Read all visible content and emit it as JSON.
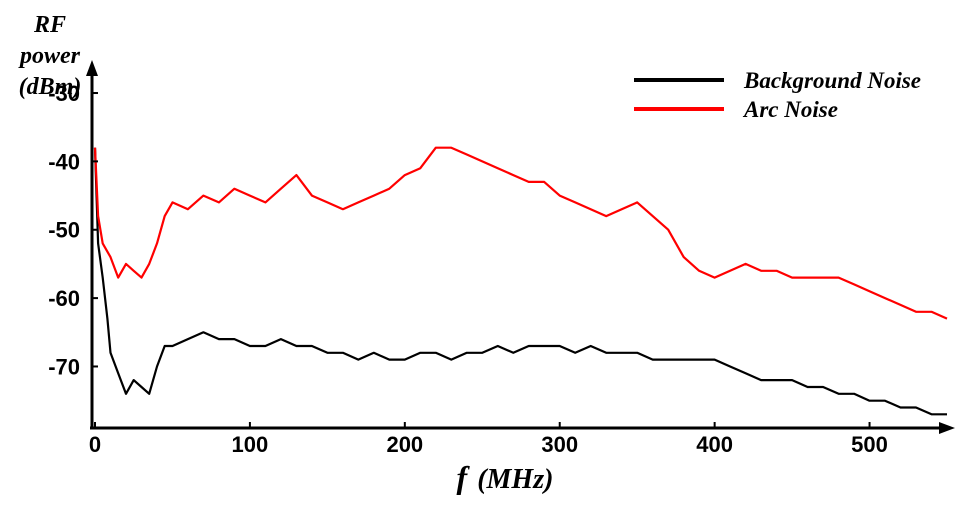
{
  "chart_data": {
    "type": "line",
    "title": "",
    "ylabel_lines": [
      "RF",
      "power",
      "(dBm)"
    ],
    "xlabel": {
      "italic_var": "f",
      "unit": "(MHz)"
    },
    "xlim": [
      0,
      550
    ],
    "ylim": [
      -79,
      -24
    ],
    "x_ticks": [
      0,
      100,
      200,
      300,
      400,
      500
    ],
    "x_tick_labels": [
      "0",
      "100",
      "200",
      "300",
      "400",
      "500"
    ],
    "y_ticks": [
      -30,
      -40,
      -50,
      -60,
      -70
    ],
    "y_tick_labels": [
      "-30",
      "-40",
      "-50",
      "-60",
      "-70"
    ],
    "grid": false,
    "legend_position": "top-right",
    "series": [
      {
        "name": "Background Noise",
        "color": "#000000",
        "x": [
          0,
          2,
          5,
          8,
          10,
          15,
          20,
          25,
          30,
          35,
          40,
          45,
          50,
          60,
          70,
          80,
          90,
          100,
          110,
          120,
          130,
          140,
          150,
          160,
          170,
          180,
          190,
          200,
          210,
          220,
          230,
          240,
          250,
          260,
          270,
          280,
          290,
          300,
          310,
          320,
          330,
          340,
          350,
          360,
          370,
          380,
          390,
          400,
          410,
          420,
          430,
          440,
          450,
          460,
          470,
          480,
          490,
          500,
          510,
          520,
          530,
          540,
          550
        ],
        "values": [
          -38,
          -52,
          -57,
          -63,
          -68,
          -71,
          -74,
          -72,
          -73,
          -74,
          -70,
          -67,
          -67,
          -66,
          -65,
          -66,
          -66,
          -67,
          -67,
          -66,
          -67,
          -67,
          -68,
          -68,
          -69,
          -68,
          -69,
          -69,
          -68,
          -68,
          -69,
          -68,
          -68,
          -67,
          -68,
          -67,
          -67,
          -67,
          -68,
          -67,
          -68,
          -68,
          -68,
          -69,
          -69,
          -69,
          -69,
          -69,
          -70,
          -71,
          -72,
          -72,
          -72,
          -73,
          -73,
          -74,
          -74,
          -75,
          -75,
          -76,
          -76,
          -77,
          -77
        ]
      },
      {
        "name": "Arc Noise",
        "color": "#ff0000",
        "x": [
          0,
          2,
          5,
          10,
          15,
          20,
          25,
          30,
          35,
          40,
          45,
          50,
          60,
          70,
          80,
          90,
          100,
          110,
          120,
          130,
          140,
          150,
          160,
          170,
          180,
          190,
          200,
          210,
          220,
          230,
          240,
          250,
          260,
          270,
          280,
          290,
          300,
          310,
          320,
          330,
          340,
          350,
          360,
          370,
          380,
          390,
          400,
          410,
          420,
          430,
          440,
          450,
          460,
          470,
          480,
          490,
          500,
          510,
          520,
          530,
          540,
          550
        ],
        "values": [
          -38,
          -48,
          -52,
          -54,
          -57,
          -55,
          -56,
          -57,
          -55,
          -52,
          -48,
          -46,
          -47,
          -45,
          -46,
          -44,
          -45,
          -46,
          -44,
          -42,
          -45,
          -46,
          -47,
          -46,
          -45,
          -44,
          -42,
          -41,
          -38,
          -38,
          -39,
          -40,
          -41,
          -42,
          -43,
          -43,
          -45,
          -46,
          -47,
          -48,
          -47,
          -46,
          -48,
          -50,
          -54,
          -56,
          -57,
          -56,
          -55,
          -56,
          -56,
          -57,
          -57,
          -57,
          -57,
          -58,
          -59,
          -60,
          -61,
          -62,
          -62,
          -63
        ]
      }
    ]
  }
}
